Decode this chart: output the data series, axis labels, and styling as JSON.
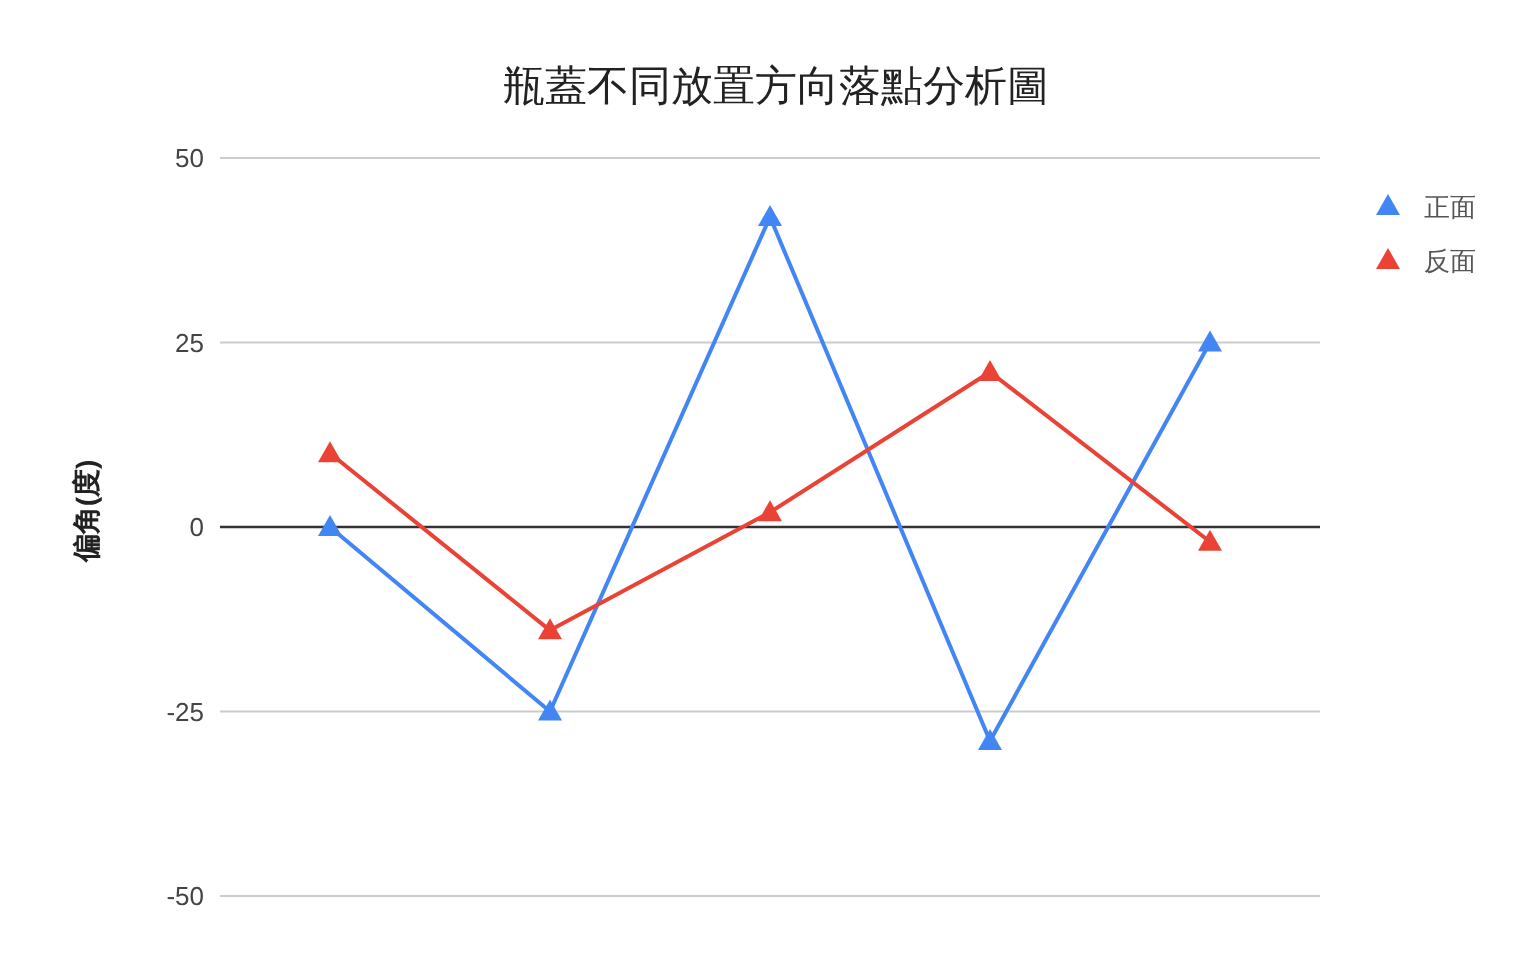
{
  "chart_data": {
    "type": "line",
    "title": "瓶蓋不同放置方向落點分析圖",
    "ylabel": "偏角(度)",
    "categories": [
      null,
      null,
      null,
      null,
      null
    ],
    "series": [
      {
        "name": "正面",
        "color": "#4285f4",
        "values": [
          0,
          -25,
          42,
          -29,
          25
        ]
      },
      {
        "name": "反面",
        "color": "#ea4335",
        "values": [
          10,
          -14,
          2,
          21,
          -2
        ]
      }
    ],
    "ylim": [
      -50,
      50
    ],
    "yticks": [
      -50,
      -25,
      0,
      25,
      50
    ],
    "grid": "y",
    "legend": "top right",
    "marker": "triangle",
    "line_style": "solid",
    "ref_lines": [
      {
        "axis": "y",
        "value": 0,
        "color": "#333333"
      }
    ]
  }
}
